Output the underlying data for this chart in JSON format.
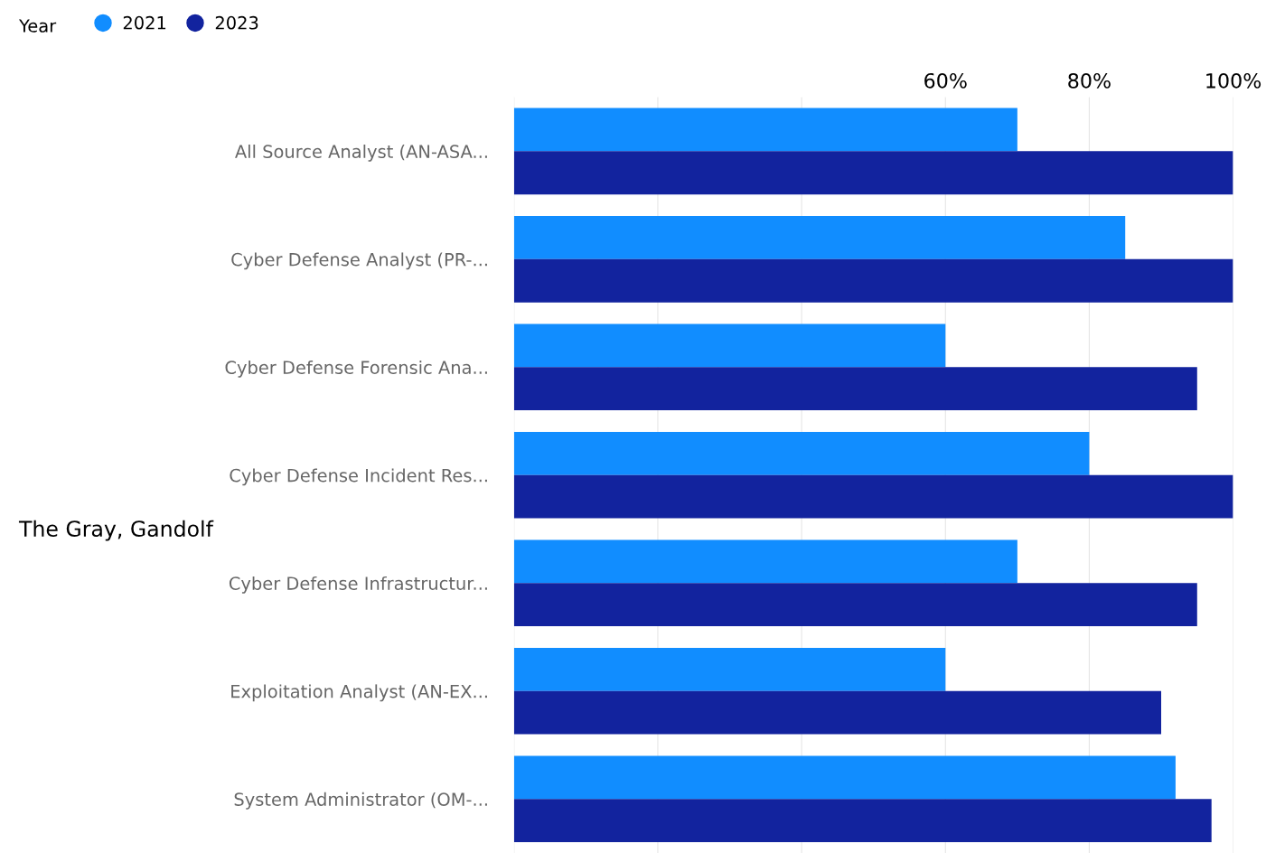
{
  "chart_data": {
    "type": "bar",
    "orientation": "horizontal",
    "legend_title": "Year",
    "legend": "top left",
    "categories": [
      "All Source Analyst (AN-ASA...",
      "Cyber Defense Analyst (PR-...",
      "Cyber Defense Forensic Ana...",
      "Cyber Defense Incident Res...",
      "Cyber Defense Infrastructur...",
      "Exploitation Analyst (AN-EX...",
      "System Administrator (OM-..."
    ],
    "series": [
      {
        "name": "2021",
        "color": "#118dff",
        "values": [
          70,
          85,
          60,
          80,
          70,
          60,
          92
        ]
      },
      {
        "name": "2023",
        "color": "#12239e",
        "values": [
          100,
          100,
          95,
          100,
          95,
          90,
          97
        ]
      }
    ],
    "xlim": [
      0,
      100
    ],
    "xticks": [
      {
        "value": 0,
        "label": null
      },
      {
        "value": 20,
        "label": null
      },
      {
        "value": 40,
        "label": null
      },
      {
        "value": 60,
        "label": "60%"
      },
      {
        "value": 80,
        "label": "80%"
      },
      {
        "value": 100,
        "label": "100%"
      }
    ],
    "grid": "x",
    "annotations": [
      "The Gray, Gandolf"
    ]
  }
}
